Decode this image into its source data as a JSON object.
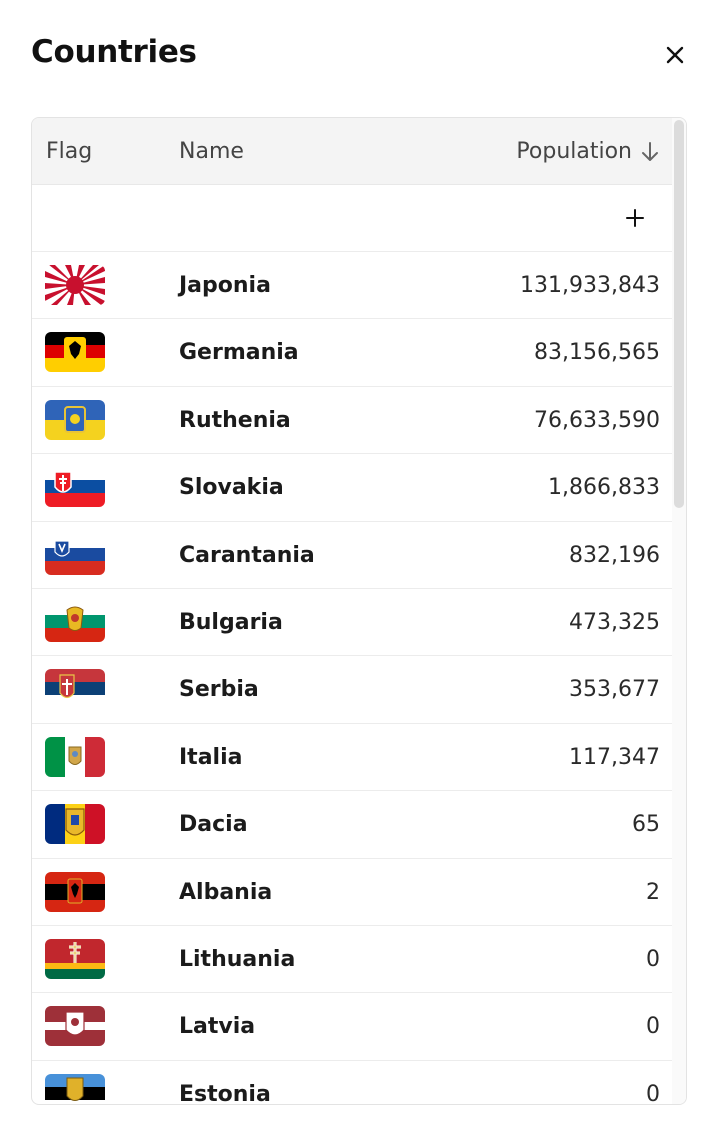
{
  "panel": {
    "title": "Countries"
  },
  "table": {
    "columns": {
      "flag": "Flag",
      "name": "Name",
      "population": "Population"
    },
    "sort": {
      "column": "population",
      "direction": "descending",
      "icon": "arrow-down-icon"
    },
    "add_icon": "plus-icon",
    "rows": [
      {
        "name": "Japonia",
        "population": "131,933,843",
        "flag": "rising-sun"
      },
      {
        "name": "Germania",
        "population": "83,156,565",
        "flag": "black-red-gold-eagle"
      },
      {
        "name": "Ruthenia",
        "population": "76,633,590",
        "flag": "blue-yellow-arms"
      },
      {
        "name": "Slovakia",
        "population": "1,866,833",
        "flag": "white-blue-red-shield"
      },
      {
        "name": "Carantania",
        "population": "832,196",
        "flag": "white-blue-red-panther"
      },
      {
        "name": "Bulgaria",
        "population": "473,325",
        "flag": "white-green-red-arms"
      },
      {
        "name": "Serbia",
        "population": "353,677",
        "flag": "red-blue-white-arms"
      },
      {
        "name": "Italia",
        "population": "117,347",
        "flag": "green-white-red-arms"
      },
      {
        "name": "Dacia",
        "population": "65",
        "flag": "blue-yellow-red-arms"
      },
      {
        "name": "Albania",
        "population": "2",
        "flag": "red-black-eagle"
      },
      {
        "name": "Lithuania",
        "population": "0",
        "flag": "crimson-cross-green"
      },
      {
        "name": "Latvia",
        "population": "0",
        "flag": "carmine-white-arms"
      },
      {
        "name": "Estonia",
        "population": "0",
        "flag": "blue-black-arms"
      }
    ]
  }
}
